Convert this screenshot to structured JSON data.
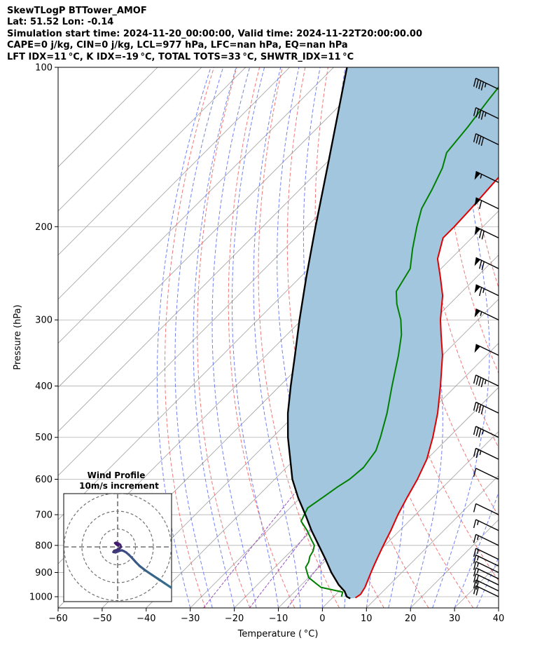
{
  "header": {
    "line1": "SkewTLogP BTTower_AMOF",
    "line2": "Lat: 51.52   Lon: -0.14",
    "line3": "Simulation start time: 2024-11-20_00:00:00, Valid time: 2024-11-22T20:00:00.00",
    "line4": "CAPE=0 j/kg, CIN=0 j/kg, LCL=977 hPa, LFC=nan hPa, EQ=nan hPa",
    "line5": "LFT IDX=11 °C, K IDX=-19 °C, TOTAL TOTS=33 °C, SHWTR_IDX=11 °C"
  },
  "colors": {
    "temperature": "#e00000",
    "dewpoint": "#008000",
    "parcel": "#000000",
    "cape_fill": "#a3c6df",
    "dry_adiabat": "#f06060",
    "moist_adiabat": "#5a6cf0",
    "mixing_ratio": "#9a4fc0",
    "isotherm": "#a0a0a0",
    "hodograph": "#355f8a"
  },
  "chart_data": {
    "type": "line",
    "title": "",
    "xlabel": "Temperature ( °C)",
    "ylabel": "Pressure (hPa)",
    "xlim": [
      -60,
      40
    ],
    "ylim": [
      1050,
      100
    ],
    "yscale": "log",
    "xticks": [
      "−60",
      "−50",
      "−40",
      "−30",
      "−20",
      "−10",
      "0",
      "10",
      "20",
      "30",
      "40"
    ],
    "yticks": [
      "100",
      "200",
      "300",
      "400",
      "500",
      "600",
      "700",
      "800",
      "900",
      "1000"
    ],
    "grid": true,
    "series": [
      {
        "name": "Temperature",
        "values": [
          [
            1005,
            5.2
          ],
          [
            990,
            5.6
          ],
          [
            960,
            5.0
          ],
          [
            930,
            4.0
          ],
          [
            900,
            3.0
          ],
          [
            870,
            2.0
          ],
          [
            840,
            1.0
          ],
          [
            810,
            0.0
          ],
          [
            780,
            -1.0
          ],
          [
            750,
            -2.0
          ],
          [
            700,
            -4.0
          ],
          [
            650,
            -5.8
          ],
          [
            600,
            -7.6
          ],
          [
            550,
            -10.0
          ],
          [
            500,
            -13.6
          ],
          [
            450,
            -18.0
          ],
          [
            400,
            -23.5
          ],
          [
            350,
            -30.0
          ],
          [
            320,
            -35.0
          ],
          [
            300,
            -38.5
          ],
          [
            270,
            -43.5
          ],
          [
            250,
            -48.0
          ],
          [
            230,
            -53.0
          ],
          [
            210,
            -56.5
          ],
          [
            200,
            -56.5
          ],
          [
            185,
            -56.8
          ],
          [
            165,
            -57.5
          ],
          [
            145,
            -58.0
          ],
          [
            130,
            -57.5
          ],
          [
            115,
            -57.0
          ],
          [
            100,
            -57.0
          ]
        ]
      },
      {
        "name": "Dewpoint",
        "values": [
          [
            1000,
            1.8
          ],
          [
            980,
            1.0
          ],
          [
            960,
            -5.0
          ],
          [
            940,
            -7.5
          ],
          [
            920,
            -10.0
          ],
          [
            900,
            -11.5
          ],
          [
            880,
            -13.0
          ],
          [
            860,
            -13.5
          ],
          [
            840,
            -14.5
          ],
          [
            820,
            -15.0
          ],
          [
            800,
            -16.0
          ],
          [
            780,
            -18.0
          ],
          [
            750,
            -21.0
          ],
          [
            720,
            -24.5
          ],
          [
            680,
            -26.0
          ],
          [
            650,
            -25.0
          ],
          [
            620,
            -24.0
          ],
          [
            600,
            -23.0
          ],
          [
            570,
            -22.5
          ],
          [
            530,
            -23.5
          ],
          [
            500,
            -25.5
          ],
          [
            450,
            -29.5
          ],
          [
            400,
            -34.5
          ],
          [
            350,
            -40.0
          ],
          [
            320,
            -44.0
          ],
          [
            300,
            -47.5
          ],
          [
            280,
            -52.0
          ],
          [
            265,
            -55.0
          ],
          [
            240,
            -57.0
          ],
          [
            220,
            -61.0
          ],
          [
            200,
            -65.0
          ],
          [
            185,
            -68.0
          ],
          [
            170,
            -70.0
          ],
          [
            155,
            -72.5
          ],
          [
            145,
            -75.0
          ],
          [
            130,
            -76.0
          ],
          [
            115,
            -77.5
          ],
          [
            100,
            -79.0
          ]
        ]
      },
      {
        "name": "Parcel",
        "values": [
          [
            1008,
            4.2
          ],
          [
            1000,
            3.0
          ],
          [
            980,
            1.5
          ],
          [
            977,
            1.3
          ],
          [
            950,
            -1.5
          ],
          [
            900,
            -6.0
          ],
          [
            850,
            -10.3
          ],
          [
            800,
            -15.0
          ],
          [
            750,
            -20.0
          ],
          [
            700,
            -25.0
          ],
          [
            650,
            -30.5
          ],
          [
            600,
            -36.0
          ],
          [
            550,
            -41.0
          ],
          [
            500,
            -46.5
          ],
          [
            450,
            -52.0
          ],
          [
            400,
            -57.5
          ],
          [
            350,
            -63.5
          ],
          [
            300,
            -70.5
          ],
          [
            250,
            -78.5
          ],
          [
            200,
            -88.0
          ],
          [
            150,
            -100.0
          ],
          [
            100,
            -117.0
          ]
        ]
      }
    ],
    "wind_barbs": [
      {
        "p": 1000,
        "speed_kt": 20
      },
      {
        "p": 975,
        "speed_kt": 20
      },
      {
        "p": 950,
        "speed_kt": 20
      },
      {
        "p": 925,
        "speed_kt": 15
      },
      {
        "p": 900,
        "speed_kt": 15
      },
      {
        "p": 875,
        "speed_kt": 15
      },
      {
        "p": 850,
        "speed_kt": 15
      },
      {
        "p": 800,
        "speed_kt": 15
      },
      {
        "p": 750,
        "speed_kt": 15
      },
      {
        "p": 700,
        "speed_kt": 10
      },
      {
        "p": 600,
        "speed_kt": 10
      },
      {
        "p": 550,
        "speed_kt": 25
      },
      {
        "p": 500,
        "speed_kt": 35
      },
      {
        "p": 450,
        "speed_kt": 40
      },
      {
        "p": 400,
        "speed_kt": 45
      },
      {
        "p": 350,
        "speed_kt": 50
      },
      {
        "p": 300,
        "speed_kt": 55
      },
      {
        "p": 270,
        "speed_kt": 65
      },
      {
        "p": 240,
        "speed_kt": 70
      },
      {
        "p": 210,
        "speed_kt": 70
      },
      {
        "p": 185,
        "speed_kt": 60
      },
      {
        "p": 165,
        "speed_kt": 55
      },
      {
        "p": 140,
        "speed_kt": 40
      },
      {
        "p": 125,
        "speed_kt": 45
      },
      {
        "p": 110,
        "speed_kt": 45
      }
    ],
    "hodograph": {
      "title": "Wind Profile",
      "subtitle": "10m/s increment",
      "rings": [
        10,
        20,
        30
      ],
      "trace": [
        [
          12.5,
          -9.5
        ],
        [
          11.0,
          -8.5
        ],
        [
          9.5,
          -7.5
        ],
        [
          8.0,
          -6.5
        ],
        [
          6.5,
          -5.5
        ],
        [
          5.2,
          -4.5
        ],
        [
          4.2,
          -3.5
        ],
        [
          3.3,
          -2.5
        ],
        [
          2.6,
          -1.8
        ],
        [
          2.0,
          -1.3
        ],
        [
          1.5,
          -1.0
        ],
        [
          1.0,
          -0.8
        ],
        [
          0.5,
          -0.9
        ],
        [
          0.0,
          -1.1
        ],
        [
          -0.5,
          -1.3
        ],
        [
          -1.0,
          -1.2
        ],
        [
          -0.8,
          -0.9
        ],
        [
          -0.2,
          -0.7
        ],
        [
          0.4,
          -0.4
        ],
        [
          0.8,
          0.0
        ],
        [
          0.6,
          0.5
        ],
        [
          0.2,
          0.8
        ],
        [
          -0.3,
          1.0
        ],
        [
          -0.6,
          0.9
        ],
        [
          -0.3,
          0.6
        ],
        [
          0.1,
          0.3
        ]
      ]
    }
  }
}
